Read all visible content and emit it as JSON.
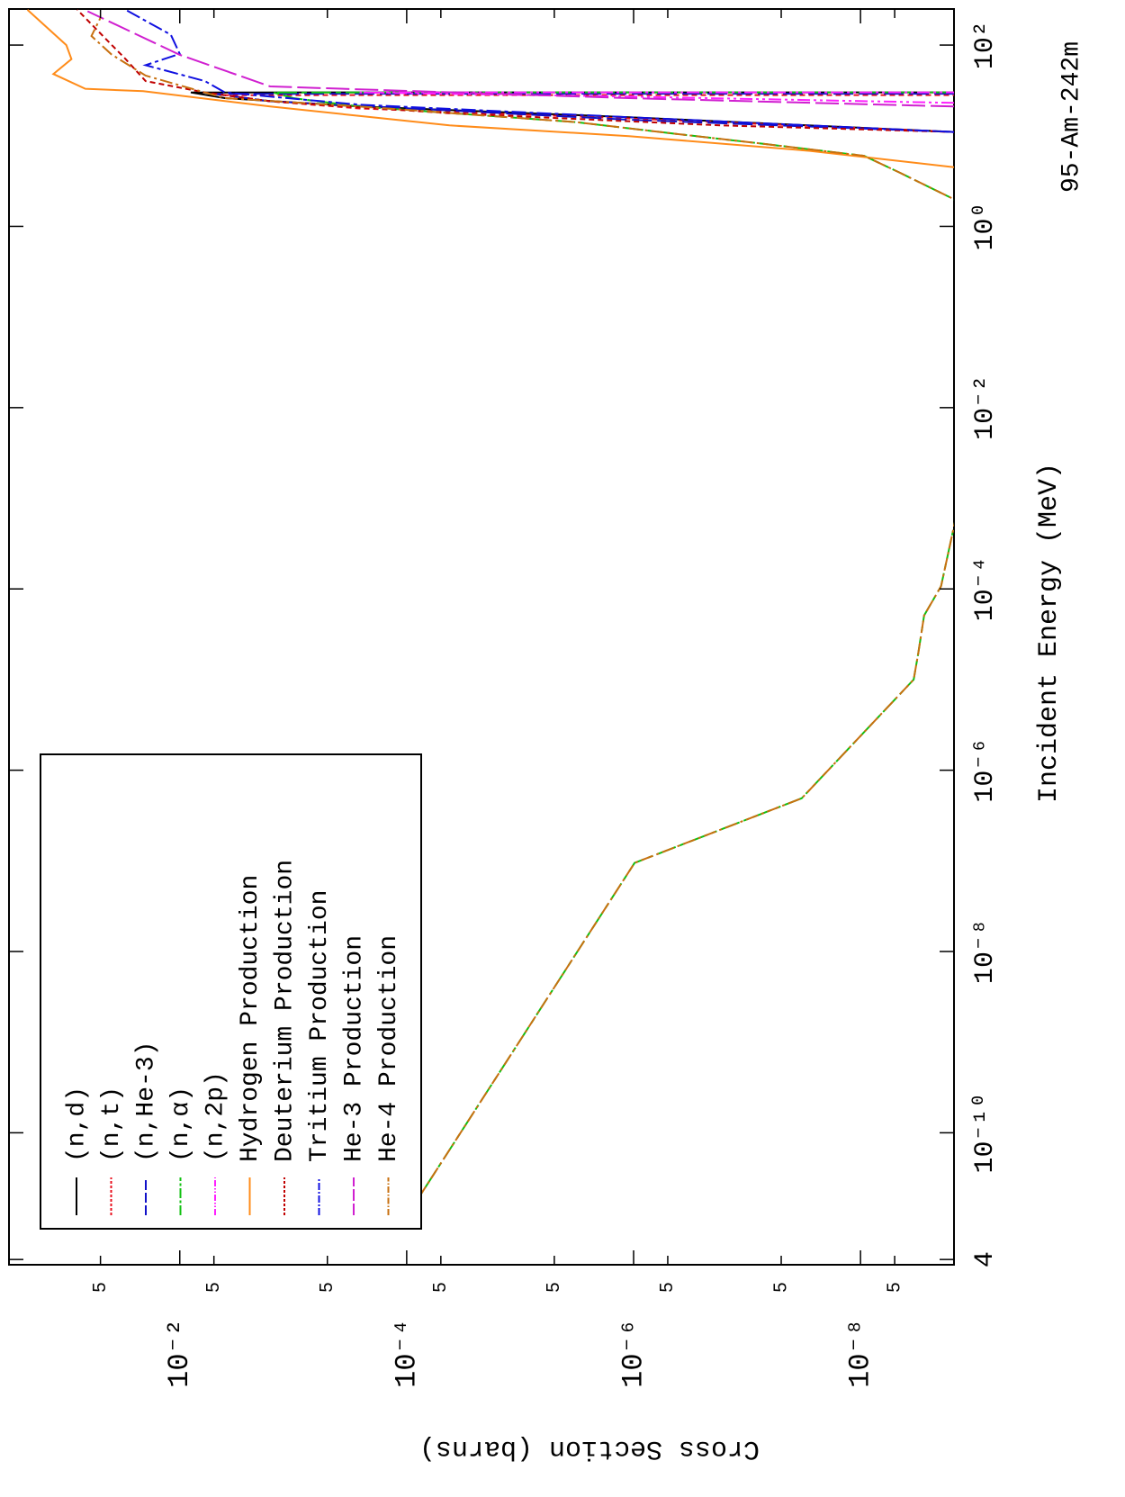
{
  "chart_data": {
    "type": "line",
    "title": "95-Am-242m",
    "x_label": "Incident Energy (MeV)",
    "y_label": "Cross Section (barns)",
    "log_x": true,
    "log_y": true,
    "xlim": [
      3.5e-12,
      250
    ],
    "ylim": [
      1.5e-09,
      0.32
    ],
    "xticks": [
      {
        "value": 4e-12,
        "label": "4"
      },
      {
        "value": 1e-10,
        "label": "10⁻¹⁰"
      },
      {
        "value": 1e-08,
        "label": "10⁻⁸"
      },
      {
        "value": 1e-06,
        "label": "10⁻⁶"
      },
      {
        "value": 0.0001,
        "label": "10⁻⁴"
      },
      {
        "value": 0.01,
        "label": "10⁻²"
      },
      {
        "value": 1,
        "label": "10⁰"
      },
      {
        "value": 100,
        "label": "10²"
      }
    ],
    "yticks": [
      {
        "value": 0.05,
        "label": "5"
      },
      {
        "value": 0.01,
        "label": "10⁻²"
      },
      {
        "value": 0.005,
        "label": "5"
      },
      {
        "value": 0.0005,
        "label": "5"
      },
      {
        "value": 0.0001,
        "label": "10⁻⁴"
      },
      {
        "value": 5e-05,
        "label": "5"
      },
      {
        "value": 5e-06,
        "label": "5"
      },
      {
        "value": 1e-06,
        "label": "10⁻⁶"
      },
      {
        "value": 5e-07,
        "label": "5"
      },
      {
        "value": 5e-08,
        "label": "5"
      },
      {
        "value": 1e-08,
        "label": "10⁻⁸"
      },
      {
        "value": 5e-09,
        "label": "5"
      }
    ],
    "legend": "upper left",
    "series": [
      {
        "name": "(n,d)",
        "color": "#000000",
        "dash": "none",
        "x": [
          11,
          16,
          21,
          26,
          30,
          30.1
        ],
        "values": [
          1.5e-09,
          1.1e-06,
          0.00026,
          0.004,
          0.008,
          1.5e-09
        ]
      },
      {
        "name": "(n,t)",
        "color": "#e8101e",
        "dash": "6 4",
        "x": [
          11,
          15.5,
          20,
          24,
          28,
          28.1
        ],
        "values": [
          1.5e-09,
          1.1e-06,
          0.00026,
          0.0016,
          0.004,
          1.5e-09
        ]
      },
      {
        "name": "(n,He-3)",
        "color": "#1010c8",
        "dash": "22 6",
        "x": [
          11,
          15,
          19,
          24,
          29,
          29.1
        ],
        "values": [
          1.5e-09,
          1.1e-06,
          4.2e-05,
          0.0016,
          0.005,
          1.5e-09
        ]
      },
      {
        "name": "(n,α)",
        "color": "#10c010",
        "dash": "22 5 6 5",
        "x": [
          1.2e-11,
          9.5e-08,
          4.9e-07,
          1e-05,
          1.95e-05,
          5.1e-05,
          0.000107,
          0.0006,
          1.95,
          3.9,
          6,
          8.1,
          10.5,
          14.1,
          21,
          26,
          30,
          30.1
        ],
        "values": [
          0.0001,
          9.8e-07,
          3.3e-08,
          3.4e-09,
          3.1e-09,
          2.75e-09,
          1.95e-09,
          1.45e-09,
          1.45e-09,
          4.5e-09,
          9.3e-09,
          6.9e-08,
          4.3e-07,
          3.2e-06,
          0.00026,
          0.001,
          0.0015,
          1.5e-09
        ]
      },
      {
        "name": "(n,2p)",
        "color": "#ff20ff",
        "dash": "14 4 3 4 3 4",
        "x": [
          23,
          27,
          30,
          30.1
        ],
        "values": [
          1.5e-09,
          1.1e-06,
          0.00026,
          1.5e-09
        ]
      },
      {
        "name": "Hydrogen Production",
        "color": "#ff8c1a",
        "dash": "none",
        "x": [
          4.5,
          6.8,
          9.9,
          13,
          21,
          31,
          33,
          48,
          70,
          100,
          245
        ],
        "values": [
          1.5e-09,
          2.8e-08,
          1.1e-06,
          4.2e-05,
          0.0016,
          0.021,
          0.068,
          0.13,
          0.09,
          0.1,
          0.22
        ]
      },
      {
        "name": "Deuterium Production",
        "color": "#c00000",
        "dash": "6 4",
        "x": [
          11,
          13,
          17.7,
          24,
          30,
          40,
          70,
          245
        ],
        "values": [
          1.5e-09,
          1.7e-07,
          4.2e-05,
          0.0016,
          0.006,
          0.02,
          0.03,
          0.08
        ]
      },
      {
        "name": "Tritium Production",
        "color": "#1010e0",
        "dash": "16 4 4 4",
        "x": [
          11,
          16,
          22,
          30,
          40,
          60,
          80,
          130,
          245
        ],
        "values": [
          1.5e-09,
          1.1e-06,
          0.00026,
          0.004,
          0.006,
          0.02,
          0.01,
          0.012,
          0.03
        ]
      },
      {
        "name": "He-3 Production",
        "color": "#d020d0",
        "dash": "26 6",
        "x": [
          21,
          26,
          35,
          78,
          236
        ],
        "values": [
          1.5e-09,
          1.1e-06,
          0.0016,
          0.01,
          0.065
        ]
      },
      {
        "name": "He-4 Production",
        "color": "#c87010",
        "dash": "14 4 3 4",
        "x": [
          1.2e-11,
          9.5e-08,
          4.9e-07,
          1e-05,
          1.95e-05,
          5.1e-05,
          0.000107,
          0.0006,
          1.95,
          3.9,
          6,
          8.1,
          10.5,
          14.1,
          21,
          26,
          46,
          79,
          126,
          200
        ],
        "values": [
          0.0001,
          9.8e-07,
          3.3e-08,
          3.4e-09,
          3.1e-09,
          2.75e-09,
          1.95e-09,
          1.45e-09,
          1.45e-09,
          4.5e-09,
          9.3e-09,
          6.9e-08,
          4.3e-07,
          3.2e-06,
          0.00026,
          0.004,
          0.02,
          0.04,
          0.06,
          0.05
        ]
      }
    ]
  }
}
